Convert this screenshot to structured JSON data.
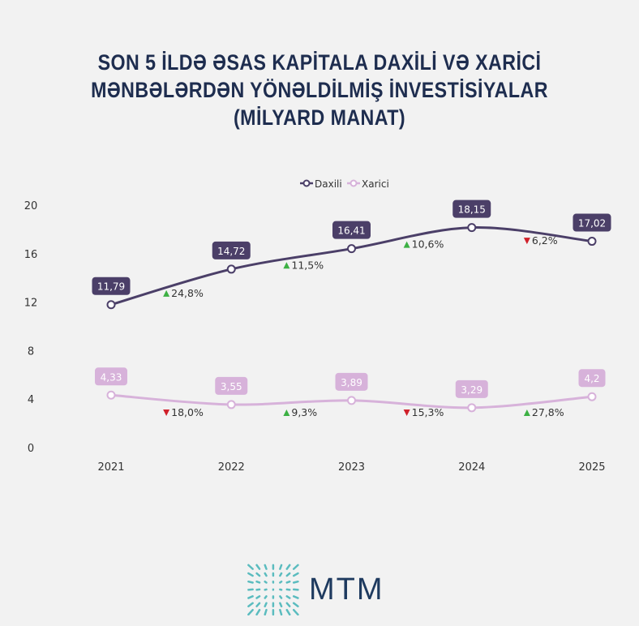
{
  "chart_data": {
    "type": "line",
    "title": [
      "SON 5 İLDƏ ƏSAS KAPİTALA DAXİLİ VƏ XARİCİ",
      "MƏNBƏLƏRDƏN YÖNƏLDİLMİŞ İNVESTİSİYALAR",
      "(MİLYARD MANAT)"
    ],
    "x": [
      "2021",
      "2022",
      "2023",
      "2024",
      "2025"
    ],
    "ylim": [
      0,
      20
    ],
    "yticks": [
      "0",
      "4",
      "8",
      "12",
      "16",
      "20"
    ],
    "legend_position": "top-center",
    "series": [
      {
        "name": "Daxili",
        "color": "#4b3f68",
        "values": [
          11.79,
          14.72,
          16.41,
          18.15,
          17.02
        ],
        "labels": [
          "11,79",
          "14,72",
          "16,41",
          "18,15",
          "17,02"
        ],
        "changes": [
          {
            "text": "24,8%",
            "dir": "up"
          },
          {
            "text": "11,5%",
            "dir": "up"
          },
          {
            "text": "10,6%",
            "dir": "up"
          },
          {
            "text": "6,2%",
            "dir": "down"
          }
        ]
      },
      {
        "name": "Xarici",
        "color": "#d7b2da",
        "values": [
          4.33,
          3.55,
          3.89,
          3.29,
          4.2
        ],
        "labels": [
          "4,33",
          "3,55",
          "3,89",
          "3,29",
          "4,2"
        ],
        "changes": [
          {
            "text": "18,0%",
            "dir": "down"
          },
          {
            "text": "9,3%",
            "dir": "up"
          },
          {
            "text": "15,3%",
            "dir": "down"
          },
          {
            "text": "27,8%",
            "dir": "up"
          }
        ]
      }
    ],
    "colors": {
      "up": "#3cb043",
      "down": "#d0202a",
      "title": "#1e2d4f"
    }
  },
  "logo": {
    "text": "MTM"
  }
}
